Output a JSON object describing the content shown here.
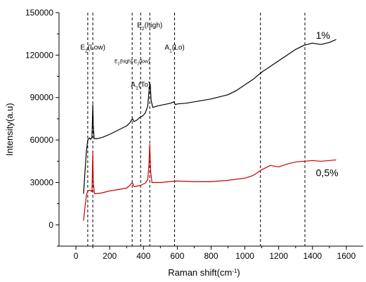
{
  "chart_data": {
    "type": "line",
    "xlabel": "Raman shift(cm",
    "xlabel_sup": "-1",
    "xlabel_end": ")",
    "ylabel": "Intensity(a.u)",
    "xlim": [
      -100,
      1700
    ],
    "ylim": [
      -15000,
      150000
    ],
    "xticks": [
      0,
      200,
      400,
      600,
      800,
      1000,
      1200,
      1400,
      1600
    ],
    "xtick_labels": [
      "0",
      "200",
      "400",
      "600",
      "800",
      "1000",
      "1200",
      "1400",
      "1600"
    ],
    "yticks": [
      0,
      30000,
      60000,
      90000,
      120000,
      150000
    ],
    "ytick_labels": [
      "0",
      "30000",
      "60000",
      "90000",
      "120000",
      "150000"
    ],
    "grid": false,
    "reference_lines_x": [
      70,
      100,
      333,
      383,
      437,
      584,
      1092,
      1355
    ],
    "annotations": [
      {
        "base": "E",
        "sub": "2",
        "rest": "(Low)",
        "x": 100,
        "y": 124000,
        "size": "normal"
      },
      {
        "base": "E",
        "sub": "2",
        "rest": "(high)-E",
        "sub2": "2",
        "rest2": "(low)",
        "x": 333,
        "y": 114500,
        "size": "small"
      },
      {
        "base": "E",
        "sub": "2",
        "rest": "(high)",
        "x": 437,
        "y": 139500,
        "size": "normal"
      },
      {
        "base": "A",
        "sub": "1",
        "rest": "(To)",
        "x": 383,
        "y": 97500,
        "size": "normal"
      },
      {
        "base": "A",
        "sub": "1",
        "rest": "(Lo)",
        "x": 584,
        "y": 124000,
        "size": "normal"
      }
    ],
    "series": [
      {
        "name": "1%",
        "color": "#000000",
        "label_x": 1420,
        "label_y": 131500,
        "points": [
          [
            45,
            22000
          ],
          [
            55,
            40000
          ],
          [
            62,
            52000
          ],
          [
            70,
            60000
          ],
          [
            80,
            61500
          ],
          [
            88,
            60500
          ],
          [
            95,
            62000
          ],
          [
            98,
            75000
          ],
          [
            100,
            85000
          ],
          [
            103,
            70000
          ],
          [
            108,
            61000
          ],
          [
            130,
            61000
          ],
          [
            160,
            62000
          ],
          [
            200,
            64000
          ],
          [
            250,
            67000
          ],
          [
            300,
            70000
          ],
          [
            318,
            72000
          ],
          [
            328,
            74000
          ],
          [
            335,
            75000
          ],
          [
            345,
            73000
          ],
          [
            360,
            74000
          ],
          [
            383,
            76500
          ],
          [
            395,
            77000
          ],
          [
            410,
            79000
          ],
          [
            425,
            84000
          ],
          [
            432,
            94000
          ],
          [
            437,
            100000
          ],
          [
            440,
            99000
          ],
          [
            445,
            88000
          ],
          [
            455,
            83000
          ],
          [
            480,
            84000
          ],
          [
            520,
            85000
          ],
          [
            560,
            86000
          ],
          [
            580,
            87000
          ],
          [
            588,
            85000
          ],
          [
            600,
            85500
          ],
          [
            650,
            86000
          ],
          [
            700,
            87000
          ],
          [
            750,
            88000
          ],
          [
            800,
            89000
          ],
          [
            850,
            90500
          ],
          [
            900,
            92000
          ],
          [
            950,
            95000
          ],
          [
            1000,
            99000
          ],
          [
            1050,
            103000
          ],
          [
            1100,
            108000
          ],
          [
            1150,
            112000
          ],
          [
            1200,
            116000
          ],
          [
            1250,
            120000
          ],
          [
            1300,
            124000
          ],
          [
            1350,
            127000
          ],
          [
            1400,
            128500
          ],
          [
            1450,
            127500
          ],
          [
            1500,
            129000
          ],
          [
            1540,
            131000
          ]
        ]
      },
      {
        "name": "0,5%",
        "color": "#cc0000",
        "label_x": 1420,
        "label_y": 34500,
        "points": [
          [
            45,
            3000
          ],
          [
            55,
            14000
          ],
          [
            62,
            21000
          ],
          [
            70,
            24000
          ],
          [
            85,
            24500
          ],
          [
            95,
            23500
          ],
          [
            98,
            40000
          ],
          [
            100,
            52000
          ],
          [
            103,
            30000
          ],
          [
            110,
            22000
          ],
          [
            150,
            22500
          ],
          [
            200,
            24000
          ],
          [
            250,
            25000
          ],
          [
            300,
            26000
          ],
          [
            320,
            28000
          ],
          [
            333,
            30000
          ],
          [
            345,
            27000
          ],
          [
            383,
            28000
          ],
          [
            410,
            29500
          ],
          [
            425,
            32000
          ],
          [
            432,
            42000
          ],
          [
            437,
            57000
          ],
          [
            442,
            38000
          ],
          [
            450,
            30000
          ],
          [
            500,
            30000
          ],
          [
            550,
            30500
          ],
          [
            600,
            31000
          ],
          [
            700,
            30500
          ],
          [
            800,
            30500
          ],
          [
            900,
            31500
          ],
          [
            1000,
            33000
          ],
          [
            1050,
            35000
          ],
          [
            1100,
            39000
          ],
          [
            1150,
            42000
          ],
          [
            1200,
            41000
          ],
          [
            1250,
            43000
          ],
          [
            1300,
            44500
          ],
          [
            1350,
            45000
          ],
          [
            1400,
            45500
          ],
          [
            1450,
            45000
          ],
          [
            1500,
            45500
          ],
          [
            1540,
            46000
          ]
        ]
      }
    ]
  }
}
